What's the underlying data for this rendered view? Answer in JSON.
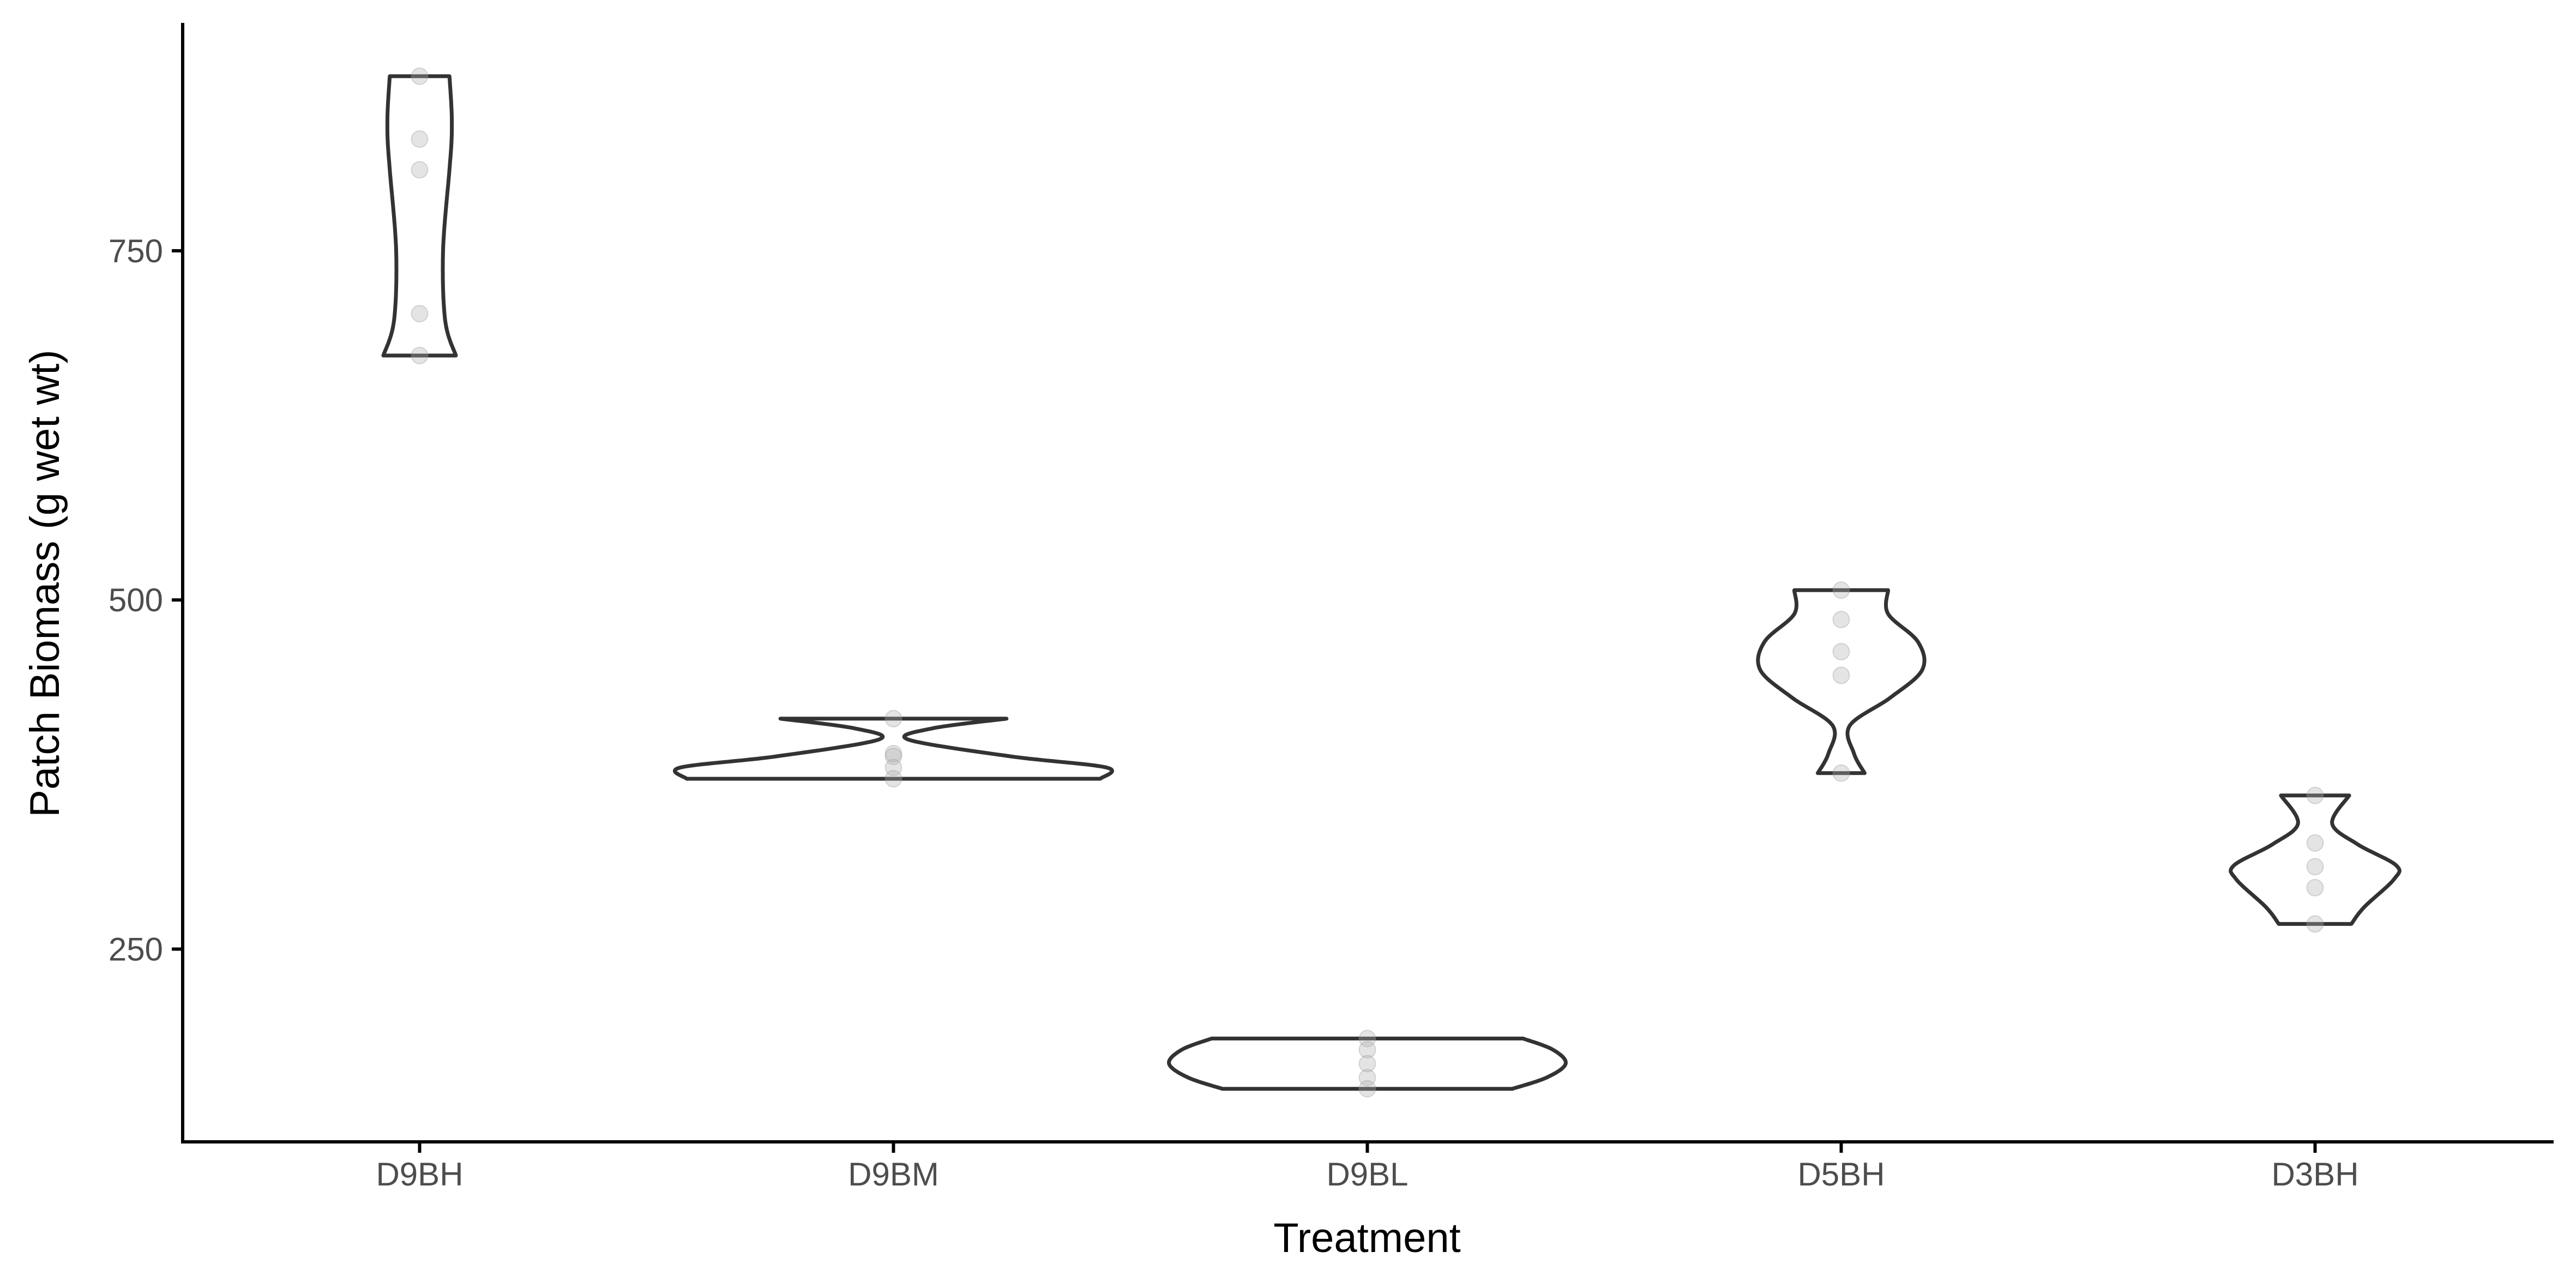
{
  "chart_data": {
    "type": "violin",
    "title": "",
    "xlabel": "Treatment",
    "ylabel": "Patch Biomass (g wet wt)",
    "categories": [
      "D9BH",
      "D9BM",
      "D9BL",
      "D5BH",
      "D3BH"
    ],
    "ylim": [
      112,
      912
    ],
    "yticks": [
      250,
      500,
      750
    ],
    "ytick_labels": [
      "250",
      "500",
      "750"
    ],
    "grid": false,
    "legend": "none",
    "groups": [
      {
        "category": "D9BH",
        "points": [
          875,
          830,
          808,
          705,
          675
        ],
        "violin_profile": [
          [
            675,
            0.17
          ],
          [
            700,
            0.12
          ],
          [
            750,
            0.11
          ],
          [
            808,
            0.14
          ],
          [
            830,
            0.15
          ],
          [
            850,
            0.15
          ],
          [
            875,
            0.14
          ]
        ]
      },
      {
        "category": "D9BM",
        "points": [
          415,
          390,
          388,
          380,
          372
        ],
        "violin_profile": [
          [
            372,
            0.97
          ],
          [
            380,
            1.0
          ],
          [
            388,
            0.55
          ],
          [
            400,
            0.07
          ],
          [
            408,
            0.18
          ],
          [
            415,
            0.53
          ]
        ]
      },
      {
        "category": "D9BL",
        "points": [
          186,
          178,
          168,
          158,
          150
        ],
        "violin_profile": [
          [
            150,
            0.68
          ],
          [
            158,
            0.84
          ],
          [
            168,
            0.93
          ],
          [
            178,
            0.87
          ],
          [
            186,
            0.73
          ]
        ]
      },
      {
        "category": "D5BH",
        "points": [
          507,
          486,
          463,
          446,
          376
        ],
        "violin_profile": [
          [
            376,
            0.11
          ],
          [
            390,
            0.06
          ],
          [
            410,
            0.04
          ],
          [
            430,
            0.23
          ],
          [
            450,
            0.38
          ],
          [
            470,
            0.36
          ],
          [
            490,
            0.22
          ],
          [
            507,
            0.22
          ]
        ]
      },
      {
        "category": "D3BH",
        "points": [
          360,
          326,
          309,
          294,
          268
        ],
        "violin_profile": [
          [
            268,
            0.17
          ],
          [
            280,
            0.23
          ],
          [
            300,
            0.37
          ],
          [
            310,
            0.38
          ],
          [
            325,
            0.2
          ],
          [
            340,
            0.08
          ],
          [
            360,
            0.16
          ]
        ]
      }
    ]
  }
}
